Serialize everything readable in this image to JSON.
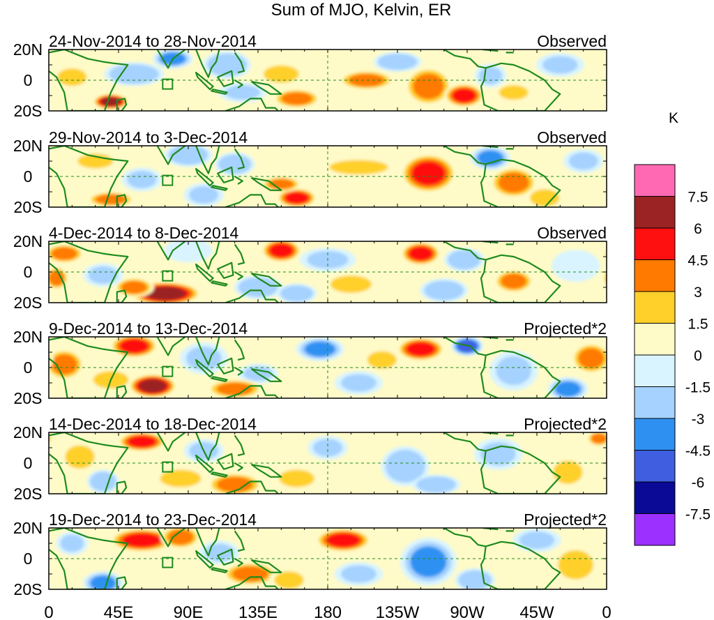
{
  "chart_data": {
    "type": "heatmap",
    "title": "Sum of MJO, Kelvin, ER",
    "colorbar": {
      "unit_label": "K",
      "tick_labels": [
        "7.5",
        "6",
        "4.5",
        "3",
        "1.5",
        "0",
        "-1.5",
        "-3",
        "-4.5",
        "-6",
        "-7.5"
      ],
      "colors": [
        "#ff69b4",
        "#9b2323",
        "#ff1010",
        "#ff7a00",
        "#ffd02a",
        "#fffbc8",
        "#d9f4ff",
        "#a6d2ff",
        "#2e91f2",
        "#3f5fe0",
        "#0a0a96",
        "#9b30ff"
      ]
    },
    "x_axis": {
      "tick_labels": [
        "0",
        "45E",
        "90E",
        "135E",
        "180",
        "135W",
        "90W",
        "45W",
        "0"
      ],
      "range_deg_east": [
        0,
        360
      ]
    },
    "y_axis": {
      "tick_labels": [
        "20N",
        "0",
        "20S"
      ],
      "range_deg": [
        -20,
        20
      ]
    },
    "panels": [
      {
        "date_range": "24-Nov-2014 to 28-Nov-2014",
        "kind": "Observed",
        "blobs": [
          [
            40,
            -14,
            9,
            4,
            7
          ],
          [
            55,
            4,
            15,
            6,
            -3
          ],
          [
            80,
            14,
            10,
            5,
            -4
          ],
          [
            115,
            10,
            12,
            7,
            -3
          ],
          [
            125,
            -8,
            12,
            5,
            -2
          ],
          [
            160,
            -12,
            12,
            5,
            4
          ],
          [
            150,
            4,
            12,
            6,
            1.5
          ],
          [
            205,
            0,
            14,
            5,
            3.5
          ],
          [
            225,
            12,
            12,
            5,
            -3
          ],
          [
            245,
            -4,
            12,
            10,
            4
          ],
          [
            268,
            -10,
            10,
            6,
            4.5
          ],
          [
            285,
            3,
            8,
            6,
            -2
          ],
          [
            300,
            -8,
            10,
            5,
            2
          ],
          [
            330,
            10,
            12,
            6,
            -2
          ],
          [
            15,
            2,
            10,
            6,
            1.5
          ]
        ]
      },
      {
        "date_range": "29-Nov-2014 to 3-Dec-2014",
        "kind": "Observed",
        "blobs": [
          [
            30,
            10,
            12,
            5,
            1.5
          ],
          [
            40,
            -15,
            12,
            4,
            4
          ],
          [
            60,
            -2,
            10,
            6,
            -2
          ],
          [
            90,
            14,
            12,
            6,
            -3
          ],
          [
            120,
            8,
            10,
            6,
            -3
          ],
          [
            160,
            -14,
            10,
            5,
            5
          ],
          [
            150,
            -5,
            10,
            4,
            3
          ],
          [
            200,
            6,
            20,
            5,
            1.5
          ],
          [
            245,
            2,
            14,
            10,
            5
          ],
          [
            285,
            12,
            10,
            6,
            -4
          ],
          [
            300,
            -4,
            12,
            8,
            3.5
          ],
          [
            320,
            -14,
            10,
            6,
            2
          ],
          [
            345,
            10,
            10,
            6,
            -2
          ],
          [
            100,
            -12,
            10,
            6,
            -2.5
          ]
        ]
      },
      {
        "date_range": "4-Dec-2014 to 8-Dec-2014",
        "kind": "Observed",
        "blobs": [
          [
            10,
            12,
            10,
            5,
            4
          ],
          [
            5,
            -4,
            6,
            6,
            3
          ],
          [
            75,
            -14,
            18,
            6,
            6.5
          ],
          [
            55,
            -10,
            10,
            5,
            4
          ],
          [
            35,
            -2,
            10,
            6,
            -2
          ],
          [
            90,
            14,
            12,
            6,
            -1.5
          ],
          [
            150,
            14,
            10,
            6,
            5
          ],
          [
            135,
            -10,
            12,
            6,
            -3
          ],
          [
            160,
            -14,
            10,
            5,
            -3
          ],
          [
            180,
            8,
            14,
            6,
            -2
          ],
          [
            195,
            -8,
            14,
            6,
            2
          ],
          [
            240,
            12,
            10,
            6,
            5.5
          ],
          [
            268,
            8,
            10,
            6,
            -3
          ],
          [
            255,
            -12,
            12,
            6,
            -3
          ],
          [
            300,
            -6,
            10,
            6,
            3.5
          ],
          [
            340,
            4,
            12,
            8,
            -1.5
          ]
        ]
      },
      {
        "date_range": "9-Dec-2014 to 13-Dec-2014",
        "kind": "Projected*2",
        "blobs": [
          [
            55,
            14,
            12,
            6,
            4.5
          ],
          [
            10,
            2,
            10,
            8,
            3
          ],
          [
            40,
            -8,
            12,
            6,
            2.5
          ],
          [
            67,
            -12,
            12,
            6,
            7.5
          ],
          [
            100,
            6,
            12,
            8,
            -2
          ],
          [
            135,
            -4,
            10,
            5,
            -2
          ],
          [
            120,
            -14,
            14,
            5,
            4
          ],
          [
            175,
            12,
            12,
            6,
            -3.5
          ],
          [
            200,
            -10,
            12,
            6,
            -2
          ],
          [
            240,
            12,
            12,
            6,
            4.5
          ],
          [
            270,
            14,
            8,
            5,
            -5
          ],
          [
            300,
            -2,
            12,
            10,
            -2.5
          ],
          [
            335,
            -14,
            10,
            6,
            -4
          ],
          [
            350,
            6,
            10,
            8,
            4
          ],
          [
            215,
            5,
            10,
            6,
            2
          ]
        ]
      },
      {
        "date_range": "14-Dec-2014 to 18-Dec-2014",
        "kind": "Projected*2",
        "blobs": [
          [
            60,
            14,
            12,
            5,
            4.5
          ],
          [
            35,
            -12,
            8,
            6,
            -3
          ],
          [
            20,
            4,
            10,
            8,
            2
          ],
          [
            85,
            -10,
            14,
            6,
            2.5
          ],
          [
            120,
            -14,
            14,
            6,
            3.5
          ],
          [
            160,
            -10,
            12,
            6,
            2
          ],
          [
            100,
            8,
            10,
            6,
            -2
          ],
          [
            180,
            10,
            10,
            6,
            -2.5
          ],
          [
            230,
            -2,
            12,
            10,
            -3
          ],
          [
            250,
            -14,
            12,
            5,
            -3
          ],
          [
            290,
            6,
            12,
            8,
            -2.5
          ],
          [
            335,
            -6,
            10,
            8,
            2
          ],
          [
            355,
            16,
            6,
            4,
            3
          ]
        ]
      },
      {
        "date_range": "19-Dec-2014 to 23-Dec-2014",
        "kind": "Projected*2",
        "blobs": [
          [
            35,
            -16,
            10,
            6,
            -4
          ],
          [
            60,
            12,
            16,
            6,
            4.5
          ],
          [
            85,
            14,
            10,
            6,
            3
          ],
          [
            110,
            4,
            10,
            6,
            -2
          ],
          [
            130,
            -10,
            14,
            6,
            3
          ],
          [
            155,
            -14,
            10,
            6,
            2
          ],
          [
            190,
            12,
            14,
            6,
            5.5
          ],
          [
            200,
            -10,
            12,
            6,
            -2
          ],
          [
            245,
            -2,
            14,
            12,
            -3.5
          ],
          [
            275,
            -14,
            10,
            6,
            -3
          ],
          [
            315,
            12,
            12,
            6,
            -2
          ],
          [
            340,
            -4,
            12,
            10,
            2.5
          ],
          [
            15,
            10,
            8,
            6,
            -2
          ]
        ]
      }
    ]
  }
}
